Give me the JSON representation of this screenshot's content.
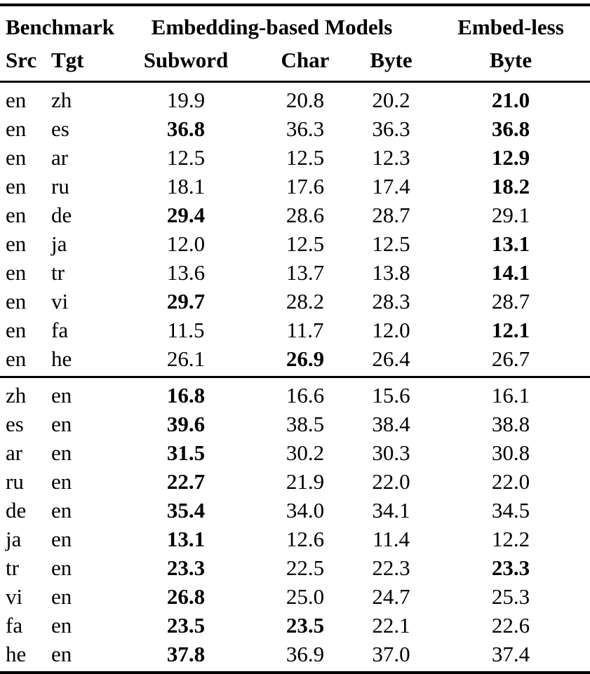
{
  "table": {
    "header": {
      "benchmark_group": "Benchmark",
      "embedding_group": "Embedding-based Models",
      "embedless_group": "Embed-less",
      "src": "Src",
      "tgt": "Tgt",
      "subword": "Subword",
      "char": "Char",
      "byte": "Byte",
      "embedless_byte": "Byte"
    },
    "blocks": [
      {
        "rows": [
          {
            "src": "en",
            "tgt": "zh",
            "scores": [
              {
                "v": "19.9",
                "b": 0
              },
              {
                "v": "20.8",
                "b": 0
              },
              {
                "v": "20.2",
                "b": 0
              },
              {
                "v": "21.0",
                "b": 1
              }
            ]
          },
          {
            "src": "en",
            "tgt": "es",
            "scores": [
              {
                "v": "36.8",
                "b": 1
              },
              {
                "v": "36.3",
                "b": 0
              },
              {
                "v": "36.3",
                "b": 0
              },
              {
                "v": "36.8",
                "b": 1
              }
            ]
          },
          {
            "src": "en",
            "tgt": "ar",
            "scores": [
              {
                "v": "12.5",
                "b": 0
              },
              {
                "v": "12.5",
                "b": 0
              },
              {
                "v": "12.3",
                "b": 0
              },
              {
                "v": "12.9",
                "b": 1
              }
            ]
          },
          {
            "src": "en",
            "tgt": "ru",
            "scores": [
              {
                "v": "18.1",
                "b": 0
              },
              {
                "v": "17.6",
                "b": 0
              },
              {
                "v": "17.4",
                "b": 0
              },
              {
                "v": "18.2",
                "b": 1
              }
            ]
          },
          {
            "src": "en",
            "tgt": "de",
            "scores": [
              {
                "v": "29.4",
                "b": 1
              },
              {
                "v": "28.6",
                "b": 0
              },
              {
                "v": "28.7",
                "b": 0
              },
              {
                "v": "29.1",
                "b": 0
              }
            ]
          },
          {
            "src": "en",
            "tgt": "ja",
            "scores": [
              {
                "v": "12.0",
                "b": 0
              },
              {
                "v": "12.5",
                "b": 0
              },
              {
                "v": "12.5",
                "b": 0
              },
              {
                "v": "13.1",
                "b": 1
              }
            ]
          },
          {
            "src": "en",
            "tgt": "tr",
            "scores": [
              {
                "v": "13.6",
                "b": 0
              },
              {
                "v": "13.7",
                "b": 0
              },
              {
                "v": "13.8",
                "b": 0
              },
              {
                "v": "14.1",
                "b": 1
              }
            ]
          },
          {
            "src": "en",
            "tgt": "vi",
            "scores": [
              {
                "v": "29.7",
                "b": 1
              },
              {
                "v": "28.2",
                "b": 0
              },
              {
                "v": "28.3",
                "b": 0
              },
              {
                "v": "28.7",
                "b": 0
              }
            ]
          },
          {
            "src": "en",
            "tgt": "fa",
            "scores": [
              {
                "v": "11.5",
                "b": 0
              },
              {
                "v": "11.7",
                "b": 0
              },
              {
                "v": "12.0",
                "b": 0
              },
              {
                "v": "12.1",
                "b": 1
              }
            ]
          },
          {
            "src": "en",
            "tgt": "he",
            "scores": [
              {
                "v": "26.1",
                "b": 0
              },
              {
                "v": "26.9",
                "b": 1
              },
              {
                "v": "26.4",
                "b": 0
              },
              {
                "v": "26.7",
                "b": 0
              }
            ]
          }
        ]
      },
      {
        "rows": [
          {
            "src": "zh",
            "tgt": "en",
            "scores": [
              {
                "v": "16.8",
                "b": 1
              },
              {
                "v": "16.6",
                "b": 0
              },
              {
                "v": "15.6",
                "b": 0
              },
              {
                "v": "16.1",
                "b": 0
              }
            ]
          },
          {
            "src": "es",
            "tgt": "en",
            "scores": [
              {
                "v": "39.6",
                "b": 1
              },
              {
                "v": "38.5",
                "b": 0
              },
              {
                "v": "38.4",
                "b": 0
              },
              {
                "v": "38.8",
                "b": 0
              }
            ]
          },
          {
            "src": "ar",
            "tgt": "en",
            "scores": [
              {
                "v": "31.5",
                "b": 1
              },
              {
                "v": "30.2",
                "b": 0
              },
              {
                "v": "30.3",
                "b": 0
              },
              {
                "v": "30.8",
                "b": 0
              }
            ]
          },
          {
            "src": "ru",
            "tgt": "en",
            "scores": [
              {
                "v": "22.7",
                "b": 1
              },
              {
                "v": "21.9",
                "b": 0
              },
              {
                "v": "22.0",
                "b": 0
              },
              {
                "v": "22.0",
                "b": 0
              }
            ]
          },
          {
            "src": "de",
            "tgt": "en",
            "scores": [
              {
                "v": "35.4",
                "b": 1
              },
              {
                "v": "34.0",
                "b": 0
              },
              {
                "v": "34.1",
                "b": 0
              },
              {
                "v": "34.5",
                "b": 0
              }
            ]
          },
          {
            "src": "ja",
            "tgt": "en",
            "scores": [
              {
                "v": "13.1",
                "b": 1
              },
              {
                "v": "12.6",
                "b": 0
              },
              {
                "v": "11.4",
                "b": 0
              },
              {
                "v": "12.2",
                "b": 0
              }
            ]
          },
          {
            "src": "tr",
            "tgt": "en",
            "scores": [
              {
                "v": "23.3",
                "b": 1
              },
              {
                "v": "22.5",
                "b": 0
              },
              {
                "v": "22.3",
                "b": 0
              },
              {
                "v": "23.3",
                "b": 1
              }
            ]
          },
          {
            "src": "vi",
            "tgt": "en",
            "scores": [
              {
                "v": "26.8",
                "b": 1
              },
              {
                "v": "25.0",
                "b": 0
              },
              {
                "v": "24.7",
                "b": 0
              },
              {
                "v": "25.3",
                "b": 0
              }
            ]
          },
          {
            "src": "fa",
            "tgt": "en",
            "scores": [
              {
                "v": "23.5",
                "b": 1
              },
              {
                "v": "23.5",
                "b": 1
              },
              {
                "v": "22.1",
                "b": 0
              },
              {
                "v": "22.6",
                "b": 0
              }
            ]
          },
          {
            "src": "he",
            "tgt": "en",
            "scores": [
              {
                "v": "37.8",
                "b": 1
              },
              {
                "v": "36.9",
                "b": 0
              },
              {
                "v": "37.0",
                "b": 0
              },
              {
                "v": "37.4",
                "b": 0
              }
            ]
          }
        ]
      }
    ]
  }
}
